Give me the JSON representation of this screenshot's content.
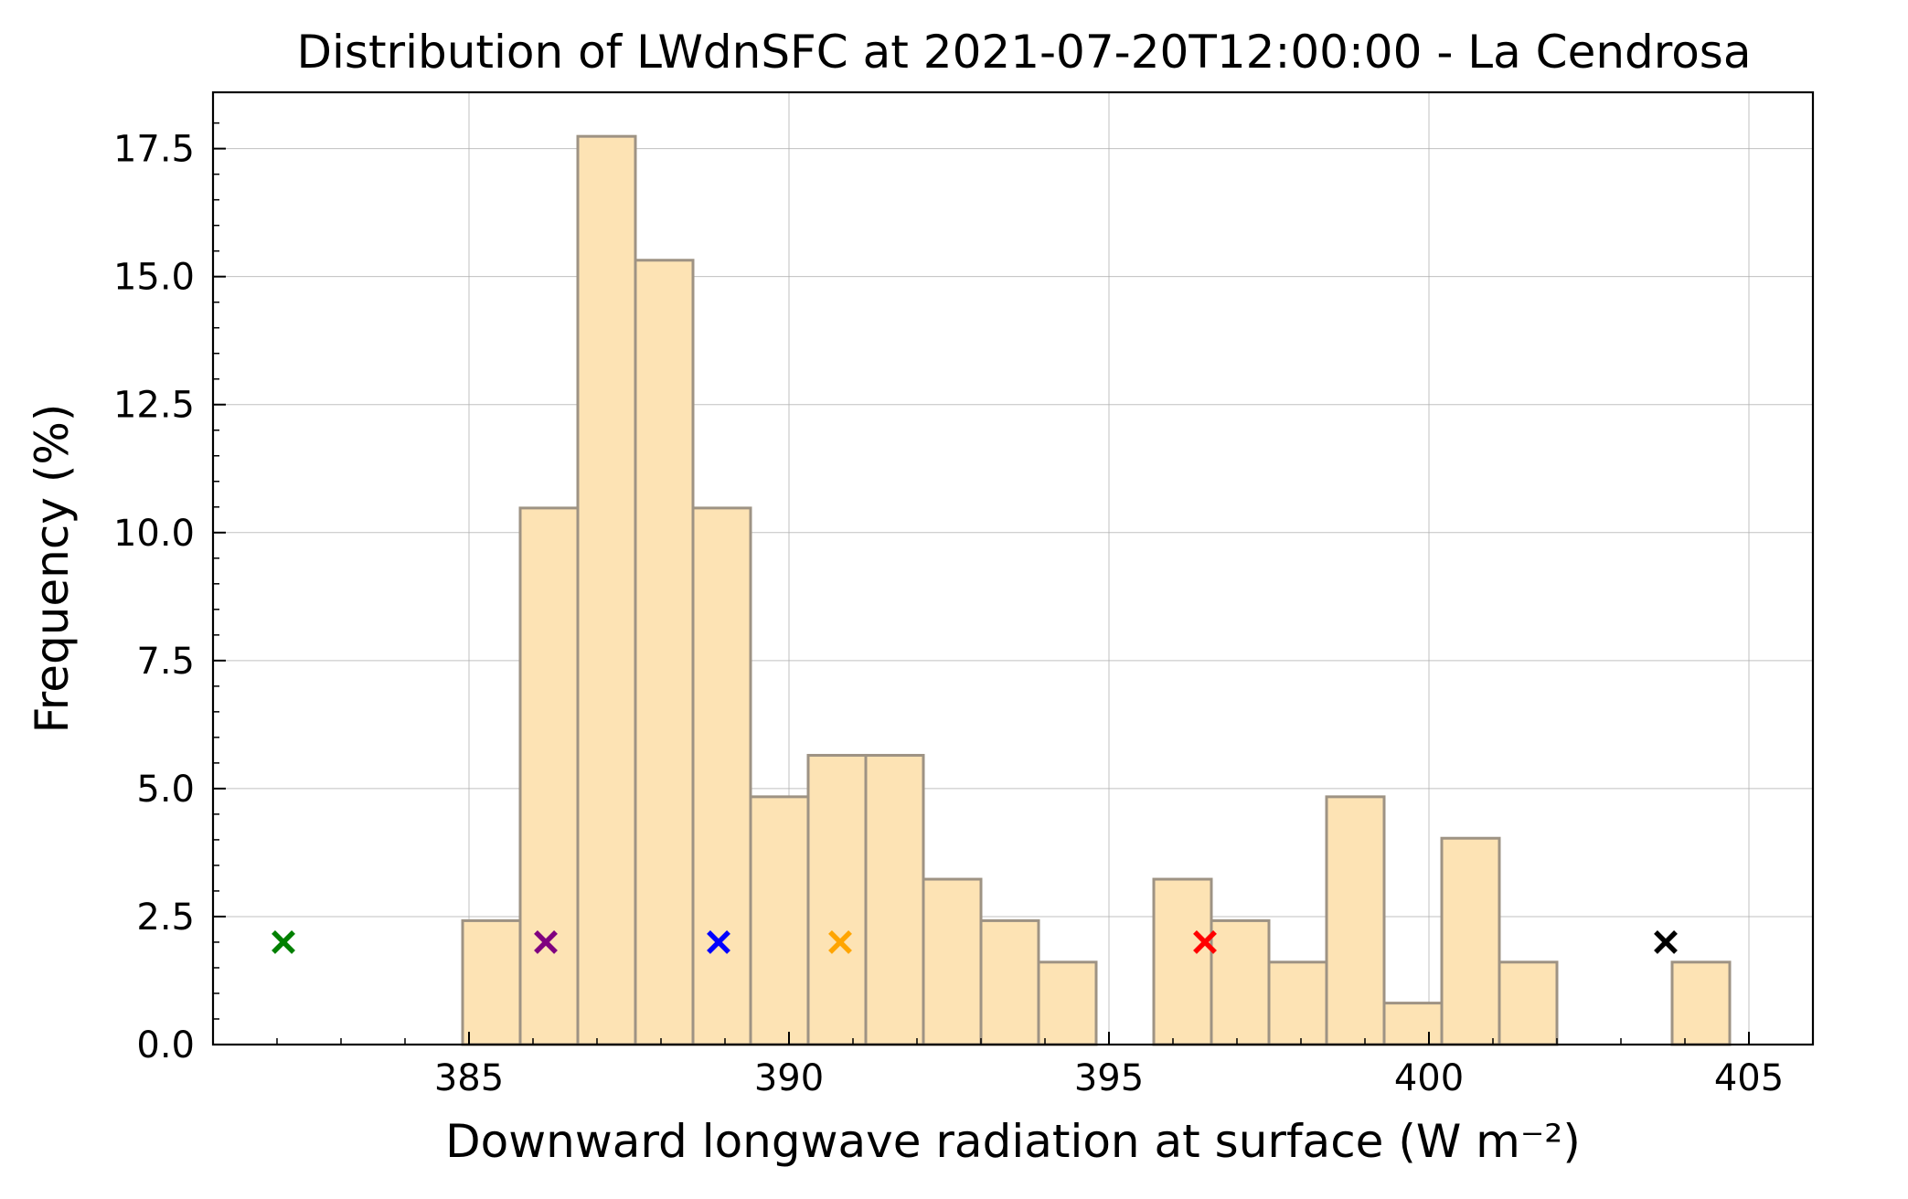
{
  "chart_data": {
    "type": "bar",
    "title": "Distribution of LWdnSFC at 2021-07-20T12:00:00 - La Cendrosa",
    "xlabel": "Downward longwave radiation at surface (W m⁻²)",
    "ylabel": "Frequency (%)",
    "xlim": [
      381.0,
      406.0
    ],
    "ylim": [
      0,
      18.6
    ],
    "xticks": [
      385,
      390,
      395,
      400,
      405
    ],
    "xtick_labels": [
      "385",
      "390",
      "395",
      "400",
      "405"
    ],
    "yticks": [
      0.0,
      2.5,
      5.0,
      7.5,
      10.0,
      12.5,
      15.0,
      17.5
    ],
    "ytick_labels": [
      "0.0",
      "2.5",
      "5.0",
      "7.5",
      "10.0",
      "12.5",
      "15.0",
      "17.5"
    ],
    "grid": true,
    "bar_color": "#fde3b4",
    "bar_edge_color": "#9e9384",
    "bins": [
      {
        "x0": 384.9,
        "x1": 385.8,
        "value": 2.42
      },
      {
        "x0": 385.8,
        "x1": 386.7,
        "value": 10.48
      },
      {
        "x0": 386.7,
        "x1": 387.6,
        "value": 17.74
      },
      {
        "x0": 387.6,
        "x1": 388.5,
        "value": 15.32
      },
      {
        "x0": 388.5,
        "x1": 389.4,
        "value": 10.48
      },
      {
        "x0": 389.4,
        "x1": 390.3,
        "value": 4.84
      },
      {
        "x0": 390.3,
        "x1": 391.2,
        "value": 5.65
      },
      {
        "x0": 391.2,
        "x1": 392.1,
        "value": 5.65
      },
      {
        "x0": 392.1,
        "x1": 393.0,
        "value": 3.23
      },
      {
        "x0": 393.0,
        "x1": 393.9,
        "value": 2.42
      },
      {
        "x0": 393.9,
        "x1": 394.8,
        "value": 1.61
      },
      {
        "x0": 395.7,
        "x1": 396.6,
        "value": 3.23
      },
      {
        "x0": 396.6,
        "x1": 397.5,
        "value": 2.42
      },
      {
        "x0": 397.5,
        "x1": 398.4,
        "value": 1.61
      },
      {
        "x0": 398.4,
        "x1": 399.3,
        "value": 4.84
      },
      {
        "x0": 399.3,
        "x1": 400.2,
        "value": 0.81
      },
      {
        "x0": 400.2,
        "x1": 401.1,
        "value": 4.03
      },
      {
        "x0": 401.1,
        "x1": 402.0,
        "value": 1.61
      },
      {
        "x0": 403.8,
        "x1": 404.7,
        "value": 1.61
      }
    ],
    "markers": [
      {
        "x": 382.1,
        "y": 2.0,
        "color": "#008000"
      },
      {
        "x": 386.2,
        "y": 2.0,
        "color": "#800080"
      },
      {
        "x": 388.9,
        "y": 2.0,
        "color": "#0000ff"
      },
      {
        "x": 390.8,
        "y": 2.0,
        "color": "#ffa500"
      },
      {
        "x": 396.5,
        "y": 2.0,
        "color": "#ff0000"
      },
      {
        "x": 403.7,
        "y": 2.0,
        "color": "#000000"
      }
    ]
  }
}
